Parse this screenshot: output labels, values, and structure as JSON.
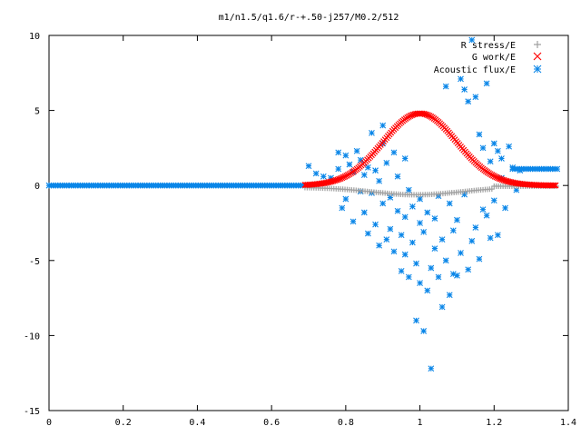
{
  "chart_data": {
    "type": "scatter",
    "title": "m1/n1.5/q1.6/r-+.50-j257/M0.2/512",
    "xlabel": "",
    "ylabel": "",
    "xlim": [
      0,
      1.4
    ],
    "ylim": [
      -15,
      10
    ],
    "x_ticks": [
      "0",
      "0.2",
      "0.4",
      "0.6",
      "0.8",
      "1",
      "1.2",
      "1.4"
    ],
    "y_ticks": [
      "10",
      "5",
      "0",
      "-5",
      "-10",
      "-15"
    ],
    "grid": false,
    "legend_position": "top-right",
    "series": [
      {
        "name": "R stress/E",
        "marker": "+",
        "color": "#a0a0a0"
      },
      {
        "name": "G work/E",
        "marker": "x",
        "color": "#ff0000"
      },
      {
        "name": "Acoustic flux/E",
        "marker": "*",
        "color": "#0a86e8"
      }
    ],
    "acoustic_scatter_points": [
      [
        0.7,
        1.3
      ],
      [
        0.72,
        0.8
      ],
      [
        0.74,
        0.6
      ],
      [
        0.76,
        0.5
      ],
      [
        0.78,
        2.2
      ],
      [
        0.78,
        1.1
      ],
      [
        0.79,
        -1.5
      ],
      [
        0.8,
        2.0
      ],
      [
        0.8,
        -0.9
      ],
      [
        0.81,
        1.4
      ],
      [
        0.82,
        0.9
      ],
      [
        0.82,
        -2.4
      ],
      [
        0.83,
        2.3
      ],
      [
        0.84,
        -0.4
      ],
      [
        0.84,
        1.7
      ],
      [
        0.85,
        -1.8
      ],
      [
        0.85,
        0.7
      ],
      [
        0.86,
        -3.2
      ],
      [
        0.86,
        1.2
      ],
      [
        0.87,
        -0.5
      ],
      [
        0.87,
        3.5
      ],
      [
        0.88,
        -2.6
      ],
      [
        0.88,
        1.0
      ],
      [
        0.89,
        -4.0
      ],
      [
        0.89,
        0.3
      ],
      [
        0.9,
        -1.2
      ],
      [
        0.9,
        2.8
      ],
      [
        0.9,
        4.0
      ],
      [
        0.91,
        -3.6
      ],
      [
        0.91,
        1.5
      ],
      [
        0.92,
        -0.8
      ],
      [
        0.92,
        -2.9
      ],
      [
        0.93,
        2.2
      ],
      [
        0.93,
        -4.4
      ],
      [
        0.94,
        -1.7
      ],
      [
        0.94,
        0.6
      ],
      [
        0.95,
        -5.7
      ],
      [
        0.95,
        -3.3
      ],
      [
        0.96,
        1.8
      ],
      [
        0.96,
        -2.1
      ],
      [
        0.96,
        -4.6
      ],
      [
        0.97,
        -0.3
      ],
      [
        0.97,
        -6.1
      ],
      [
        0.98,
        -1.4
      ],
      [
        0.98,
        -3.8
      ],
      [
        0.99,
        -5.2
      ],
      [
        0.99,
        -9.0
      ],
      [
        1.0,
        -2.5
      ],
      [
        1.0,
        -0.9
      ],
      [
        1.0,
        -6.5
      ],
      [
        1.01,
        -9.7
      ],
      [
        1.01,
        -3.1
      ],
      [
        1.02,
        -7.0
      ],
      [
        1.02,
        -1.8
      ],
      [
        1.03,
        -5.5
      ],
      [
        1.03,
        -12.2
      ],
      [
        1.04,
        -4.2
      ],
      [
        1.04,
        -2.2
      ],
      [
        1.05,
        -6.1
      ],
      [
        1.05,
        -0.7
      ],
      [
        1.06,
        -3.6
      ],
      [
        1.06,
        -8.1
      ],
      [
        1.07,
        6.6
      ],
      [
        1.07,
        -5.0
      ],
      [
        1.08,
        -1.2
      ],
      [
        1.08,
        -7.3
      ],
      [
        1.09,
        -3.0
      ],
      [
        1.09,
        -5.9
      ],
      [
        1.1,
        -2.3
      ],
      [
        1.1,
        -6.0
      ],
      [
        1.11,
        7.1
      ],
      [
        1.11,
        -4.5
      ],
      [
        1.12,
        6.4
      ],
      [
        1.12,
        -0.6
      ],
      [
        1.13,
        5.6
      ],
      [
        1.13,
        -5.6
      ],
      [
        1.14,
        9.7
      ],
      [
        1.14,
        -3.7
      ],
      [
        1.15,
        -2.8
      ],
      [
        1.15,
        5.9
      ],
      [
        1.16,
        3.4
      ],
      [
        1.16,
        -4.9
      ],
      [
        1.17,
        2.5
      ],
      [
        1.17,
        -1.6
      ],
      [
        1.18,
        6.8
      ],
      [
        1.18,
        -2.0
      ],
      [
        1.19,
        1.6
      ],
      [
        1.19,
        -3.5
      ],
      [
        1.2,
        2.8
      ],
      [
        1.2,
        -1.0
      ],
      [
        1.21,
        2.3
      ],
      [
        1.21,
        -3.3
      ],
      [
        1.22,
        1.8
      ],
      [
        1.22,
        0.5
      ],
      [
        1.23,
        -1.5
      ],
      [
        1.24,
        2.6
      ],
      [
        1.25,
        1.2
      ],
      [
        1.26,
        -0.3
      ],
      [
        1.27,
        1.0
      ]
    ]
  }
}
